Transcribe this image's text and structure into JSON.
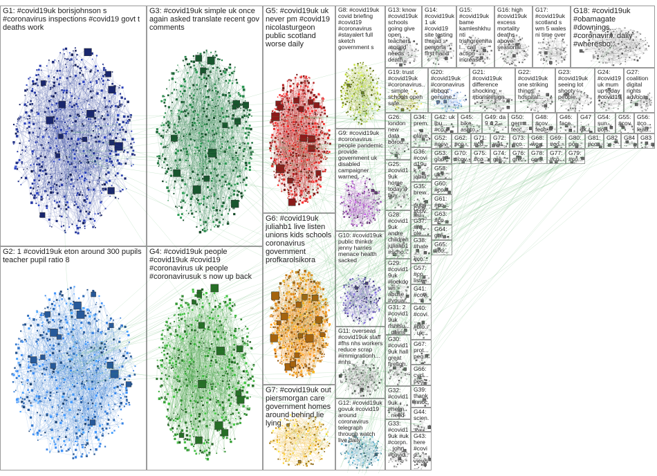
{
  "groups": [
    {
      "id": "G1",
      "terms": "#covid19uk borisjohnson s #coronavirus inspections #covid19 govt t deaths work",
      "color": "#1f2f88"
    },
    {
      "id": "G2",
      "terms": "1 #covid19uk eton around 300 pupils teacher pupil ratio 8",
      "color": "#2f6fc0"
    },
    {
      "id": "G3",
      "terms": "#covid19uk simple uk once again asked translate recent gov comments",
      "color": "#1e6b3a"
    },
    {
      "id": "G4",
      "terms": "#covid19uk people #covid19uk #covid19 #coronavirus uk people #coronavirusuk s now up back",
      "color": "#2f8a2f"
    },
    {
      "id": "G5",
      "terms": "#covid19uk uk never pm #covid19 nicolasturgeon public scotland worse daily",
      "color": "#b02020"
    },
    {
      "id": "G6",
      "terms": "#covid19uk juliahb1 live listen unions kids schools coronavirus government profkarolsikora",
      "color": "#d07a10"
    },
    {
      "id": "G7",
      "terms": "#covid19uk out piersmorgan care government homes around behind lie lying",
      "color": "#d8a020"
    },
    {
      "id": "G8",
      "terms": "#covid19uk covid briefing #covid19 #coronavirus #stayalert full sketch government s",
      "color": "#8aa020"
    },
    {
      "id": "G9",
      "terms": "#covid19uk #coronavirus people pandemic provide government uk disabled campaigner warned",
      "color": "#8a3fa0"
    },
    {
      "id": "G10",
      "terms": "#covid19uk public thinkdr jenny harries menace health sacked",
      "color": "#5a4aa0"
    },
    {
      "id": "G11",
      "terms": "overseas #covid19uk staff #fhs nhs workers reduce scrap #immigrationh... #nhs",
      "color": "#6a6a6a"
    },
    {
      "id": "G12",
      "terms": "#covid19uk govuk #covid19 around coronavirus telegraph through watch live daily",
      "color": "#4a8aa0"
    },
    {
      "id": "G13",
      "terms": "know #covid19uk schools going give open teachers around needs death",
      "color": "#808080"
    },
    {
      "id": "G14",
      "terms": "#covid19uk 1 uk #covid19 site testing thread persona first hand",
      "color": "#808080"
    },
    {
      "id": "G15",
      "terms": "#covid19uk bame kamleshkhunti trishgreenhal... call action increase",
      "color": "#808080"
    },
    {
      "id": "G16",
      "terms": "high #covid19uk excess mortality deaths above seasonal...",
      "color": "#808080"
    },
    {
      "id": "G17",
      "terms": "#covid19uk scotland s wm 5 wales ni time over",
      "color": "#808080"
    },
    {
      "id": "G18",
      "terms": "#covid19uk #obamagate #downings... #coronavir... daily #wheresbo...",
      "color": "#808080"
    },
    {
      "id": "G19",
      "terms": "trust #covid19uk #coronavirus... simple schools open safe...",
      "color": "#a0a040"
    },
    {
      "id": "G20",
      "terms": "#covid19uk #coronavirus #bbqqt genuine...",
      "color": "#7a9ad0"
    },
    {
      "id": "G21",
      "terms": "#covid19uk difference shocking #borisresign...",
      "color": "#808080"
    },
    {
      "id": "G22",
      "terms": "#covid19uk one striking things hospital...",
      "color": "#808080"
    },
    {
      "id": "G23",
      "terms": "#covid19uk seeing lot shooty people...",
      "color": "#808080"
    },
    {
      "id": "G24",
      "terms": "#covid19uk mum up today #covid19...",
      "color": "#808080"
    },
    {
      "id": "G25",
      "terms": "#covid19uk home today 4 buy...",
      "color": "#808080"
    },
    {
      "id": "G26",
      "terms": "london new data borou...",
      "color": "#808080"
    },
    {
      "id": "G27",
      "terms": "coalition digital rights advoca...",
      "color": "#808080"
    },
    {
      "id": "G28",
      "terms": "#covid19uk andre children juliahb1 #scho...",
      "color": "#808080"
    },
    {
      "id": "G29",
      "terms": "#covid19uk #lockdown abuse #youar...",
      "color": "#808080"
    },
    {
      "id": "G30",
      "terms": "#covid19uk hall great firefigh...",
      "color": "#808080"
    },
    {
      "id": "G31",
      "terms": "2 #covid19uk rishisu... plans day...",
      "color": "#808080"
    },
    {
      "id": "G32",
      "terms": "#covid19uk #helm... need help...",
      "color": "#808080"
    },
    {
      "id": "G33",
      "terms": "#covid19uk #uk #coron... john #covid...",
      "color": "#808080"
    },
    {
      "id": "G34",
      "terms": "prem... playe... inter...",
      "color": "#808080"
    },
    {
      "id": "G35",
      "terms": "brew... pubs #cov... #pub...",
      "color": "#808080"
    },
    {
      "id": "G36",
      "terms": "#covid19uk jabid brump...",
      "color": "#808080"
    },
    {
      "id": "G37",
      "terms": "#ni... ple...",
      "color": "#808080"
    },
    {
      "id": "G38",
      "terms": "#hate... #co... #lock...",
      "color": "#808080"
    },
    {
      "id": "G39",
      "terms": "thank innoc... donat...",
      "color": "#808080"
    },
    {
      "id": "G40",
      "terms": "#covi... #blo... uk...",
      "color": "#808080"
    },
    {
      "id": "G41",
      "terms": "#covi... nhsle... #se...",
      "color": "#808080"
    },
    {
      "id": "G42",
      "terms": "uk lbu... #co...",
      "color": "#808080"
    },
    {
      "id": "G43",
      "terms": "here #covid... views...",
      "color": "#808080"
    },
    {
      "id": "G44",
      "terms": "scien... 'loss... taste...",
      "color": "#808080"
    },
    {
      "id": "G45",
      "terms": "bike ashto...",
      "color": "#808080"
    },
    {
      "id": "G46",
      "terms": "face... #face...",
      "color": "#808080"
    },
    {
      "id": "G47",
      "terms": "uk... chart... work...",
      "color": "#808080"
    },
    {
      "id": "G48",
      "terms": "#cov... fecc... bein...",
      "color": "#808080"
    },
    {
      "id": "G49",
      "terms": "da 9 4 2...",
      "color": "#808080"
    },
    {
      "id": "G50",
      "terms": "germ... fecc...",
      "color": "#808080"
    },
    {
      "id": "G51",
      "terms": "#cov... new... #c...",
      "color": "#808080"
    },
    {
      "id": "G52",
      "terms": "#cov... #co...",
      "color": "#808080"
    },
    {
      "id": "G53",
      "terms": "goo... gov...",
      "color": "#808080"
    },
    {
      "id": "G54",
      "terms": "sun... boj... lea...",
      "color": "#808080"
    },
    {
      "id": "G55",
      "terms": "#cov... #cov...",
      "color": "#808080"
    },
    {
      "id": "G56",
      "terms": "#co... lead... back...",
      "color": "#808080"
    },
    {
      "id": "G57",
      "terms": "#co... liste...",
      "color": "#808080"
    },
    {
      "id": "G58",
      "terms": "uk... up... uk...",
      "color": "#808080"
    },
    {
      "id": "G59",
      "terms": "asl... #co...",
      "color": "#808080"
    },
    {
      "id": "G60",
      "terms": "#co... flu...",
      "color": "#808080"
    },
    {
      "id": "G61",
      "terms": "#co... leg... lay...",
      "color": "#808080"
    },
    {
      "id": "G62",
      "terms": "#co... cov...",
      "color": "#808080"
    },
    {
      "id": "G63",
      "terms": "#co... beh...",
      "color": "#808080"
    },
    {
      "id": "G64",
      "terms": "gre... #co...",
      "color": "#808080"
    },
    {
      "id": "G65",
      "terms": "#co... sha... ca...",
      "color": "#808080"
    },
    {
      "id": "G66",
      "terms": "cycl... peo...",
      "color": "#808080"
    },
    {
      "id": "G67",
      "terms": "prot... peo...",
      "color": "#808080"
    },
    {
      "id": "G68",
      "terms": "wo... daili...",
      "color": "#808080"
    },
    {
      "id": "G69",
      "terms": "#co... resi...",
      "color": "#808080"
    },
    {
      "id": "G70",
      "terms": "#cov... #co...",
      "color": "#808080"
    },
    {
      "id": "G71",
      "terms": "#co... hari...",
      "color": "#808080"
    },
    {
      "id": "G72",
      "terms": "wat... 17t...",
      "color": "#808080"
    },
    {
      "id": "G73",
      "terms": "#co... #co...",
      "color": "#808080"
    },
    {
      "id": "G74",
      "terms": "gre... #co...",
      "color": "#808080"
    },
    {
      "id": "G75",
      "terms": "#co... #co...",
      "color": "#808080"
    },
    {
      "id": "G76",
      "terms": "gre... #co...",
      "color": "#808080"
    },
    {
      "id": "G77",
      "terms": "#co... uhp...",
      "color": "#808080"
    },
    {
      "id": "G78",
      "terms": "cor... #co...",
      "color": "#808080"
    },
    {
      "id": "G79",
      "terms": "#co... #co...",
      "color": "#808080"
    },
    {
      "id": "G80",
      "terms": "por... wel...",
      "color": "#808080"
    },
    {
      "id": "G81",
      "terms": "#co... #co...",
      "color": "#808080"
    },
    {
      "id": "G82",
      "terms": "#co... #co...",
      "color": "#808080"
    },
    {
      "id": "G83",
      "terms": "#co... #co...",
      "color": "#808080"
    },
    {
      "id": "G84",
      "terms": "#co... #co...",
      "color": "#808080"
    }
  ]
}
